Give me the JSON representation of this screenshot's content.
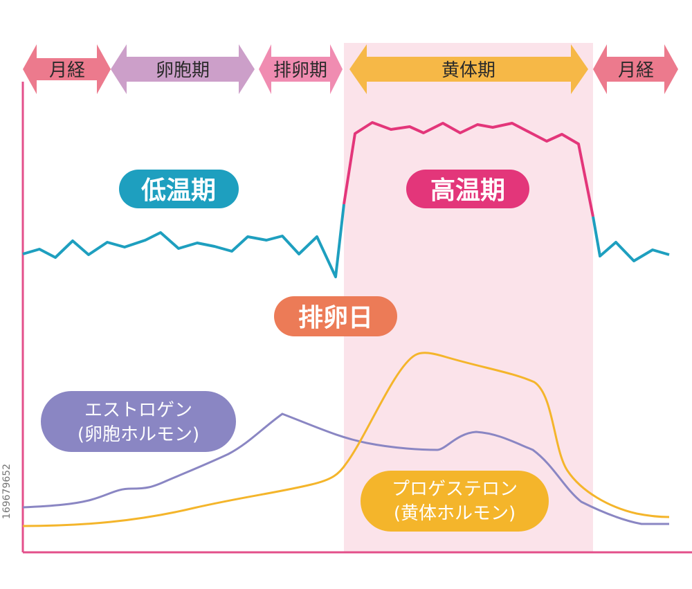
{
  "phases": [
    {
      "label": "月経",
      "color": "#ec7a8d"
    },
    {
      "label": "卵胞期",
      "color": "#cc9fc9"
    },
    {
      "label": "排卵期",
      "color": "#f08cb1"
    },
    {
      "label": "黄体期",
      "color": "#f6b847"
    },
    {
      "label": "月経",
      "color": "#ec7a8d"
    }
  ],
  "luteal_region_color": "#fbe3ea",
  "axis_color": "#e34f8a",
  "temperature": {
    "low_label": "低温期",
    "low_color": "#1e9fbf",
    "high_label": "高温期",
    "high_color": "#e3367a",
    "ovulation_label": "排卵日",
    "ovulation_color": "#ec7b57"
  },
  "hormones": {
    "estrogen": {
      "line1": "エストロゲン",
      "line2": "(卵胞ホルモン)",
      "color": "#8a86c3"
    },
    "progesterone": {
      "line1": "プロゲステロン",
      "line2": "(黄体ホルモン)",
      "color": "#f4b52b"
    }
  },
  "watermark_id": "169679652",
  "chart_data": {
    "type": "line",
    "title": "",
    "xlabel": "",
    "ylabel": "",
    "series": [
      {
        "name": "低温期 / 高温期",
        "values": []
      },
      {
        "name": "エストロゲン",
        "values": []
      },
      {
        "name": "プロゲステロン",
        "values": []
      }
    ]
  }
}
